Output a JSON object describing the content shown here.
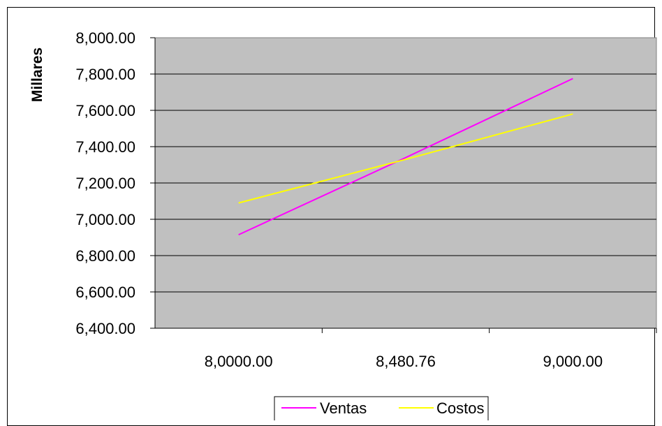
{
  "chart_data": {
    "type": "line",
    "title": "",
    "xlabel": "",
    "ylabel": "Millares",
    "categories": [
      "8,0000.00",
      "8,480.76",
      "9,000.00"
    ],
    "ylim": [
      6400,
      8000
    ],
    "yticks": [
      "8,000.00",
      "7,800.00",
      "7,600.00",
      "7,400.00",
      "7,200.00",
      "7,000.00",
      "6,800.00",
      "6,600.00",
      "6,400.00"
    ],
    "grid": true,
    "legend_position": "bottom",
    "series": [
      {
        "name": "Ventas",
        "values": [
          6915,
          7340,
          7775
        ],
        "color": "#ff00ff"
      },
      {
        "name": "Costos",
        "values": [
          7090,
          7330,
          7580
        ],
        "color": "#ffff00"
      }
    ],
    "plot_background": "#c0c0c0"
  }
}
